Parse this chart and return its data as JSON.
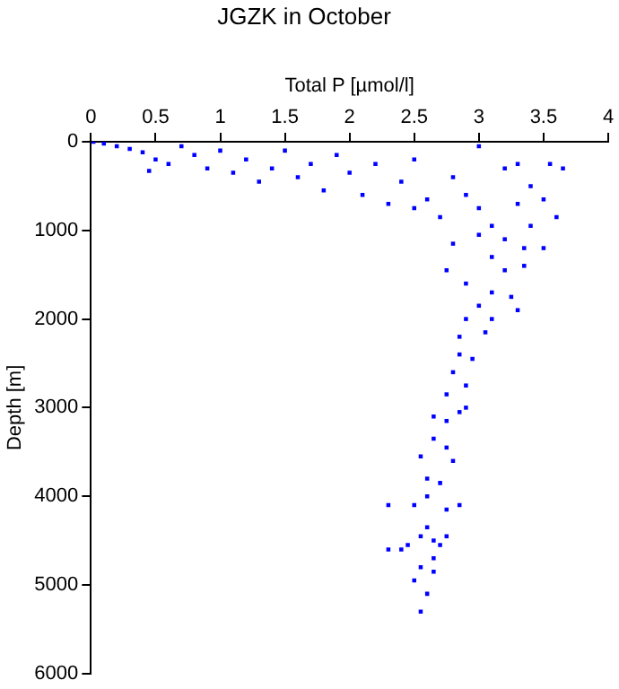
{
  "chart_data": {
    "type": "scatter",
    "title": "JGZK in October",
    "xlabel": "Total P [µmol/l]",
    "ylabel": "Depth [m]",
    "xlim": [
      0,
      4
    ],
    "xticks": [
      0,
      0.5,
      1,
      1.5,
      2,
      2.5,
      3,
      3.5,
      4
    ],
    "ylim": [
      6000,
      0
    ],
    "yticks": [
      0,
      1000,
      2000,
      3000,
      4000,
      5000,
      6000
    ],
    "grid": false,
    "legend": false,
    "marker": "square",
    "series": [
      {
        "color": "#0000ff",
        "x": [
          0.02,
          0.1,
          0.2,
          0.3,
          0.4,
          0.5,
          0.6,
          0.45,
          0.7,
          0.8,
          0.9,
          1.0,
          1.1,
          1.2,
          1.3,
          1.4,
          1.5,
          1.6,
          1.7,
          1.8,
          1.9,
          2.0,
          2.1,
          2.2,
          2.3,
          2.4,
          2.5,
          2.6,
          2.7,
          2.5,
          2.8,
          2.9,
          3.0,
          3.0,
          3.1,
          3.2,
          3.3,
          3.4,
          3.55,
          3.65,
          3.5,
          3.6,
          3.3,
          3.2,
          3.4,
          3.0,
          3.1,
          2.8,
          3.35,
          3.5,
          2.75,
          3.2,
          3.35,
          2.9,
          3.1,
          3.25,
          3.0,
          3.3,
          2.9,
          3.1,
          2.85,
          3.05,
          2.85,
          2.95,
          2.8,
          2.9,
          2.75,
          2.9,
          2.65,
          2.75,
          2.85,
          2.65,
          2.75,
          2.8,
          2.55,
          2.6,
          2.7,
          2.5,
          2.3,
          2.6,
          2.85,
          2.75,
          2.6,
          2.55,
          2.65,
          2.45,
          2.7,
          2.75,
          2.3,
          2.4,
          2.65,
          2.65,
          2.55,
          2.5,
          2.6,
          2.55
        ],
        "values": [
          0,
          20,
          50,
          80,
          120,
          200,
          250,
          330,
          50,
          150,
          300,
          100,
          350,
          200,
          450,
          300,
          100,
          400,
          250,
          550,
          150,
          350,
          600,
          250,
          700,
          450,
          200,
          650,
          850,
          750,
          400,
          600,
          50,
          750,
          950,
          300,
          250,
          500,
          250,
          300,
          650,
          850,
          700,
          1100,
          950,
          1050,
          1300,
          1150,
          1200,
          1200,
          1450,
          1450,
          1400,
          1600,
          1700,
          1750,
          1850,
          1900,
          2000,
          2000,
          2200,
          2150,
          2400,
          2450,
          2600,
          2750,
          2850,
          3000,
          3100,
          3150,
          3050,
          3350,
          3450,
          3600,
          3550,
          3800,
          3850,
          4100,
          4100,
          4000,
          4100,
          4150,
          4350,
          4450,
          4500,
          4550,
          4550,
          4450,
          4600,
          4600,
          4700,
          4850,
          4800,
          4950,
          5100,
          5300
        ]
      }
    ]
  }
}
